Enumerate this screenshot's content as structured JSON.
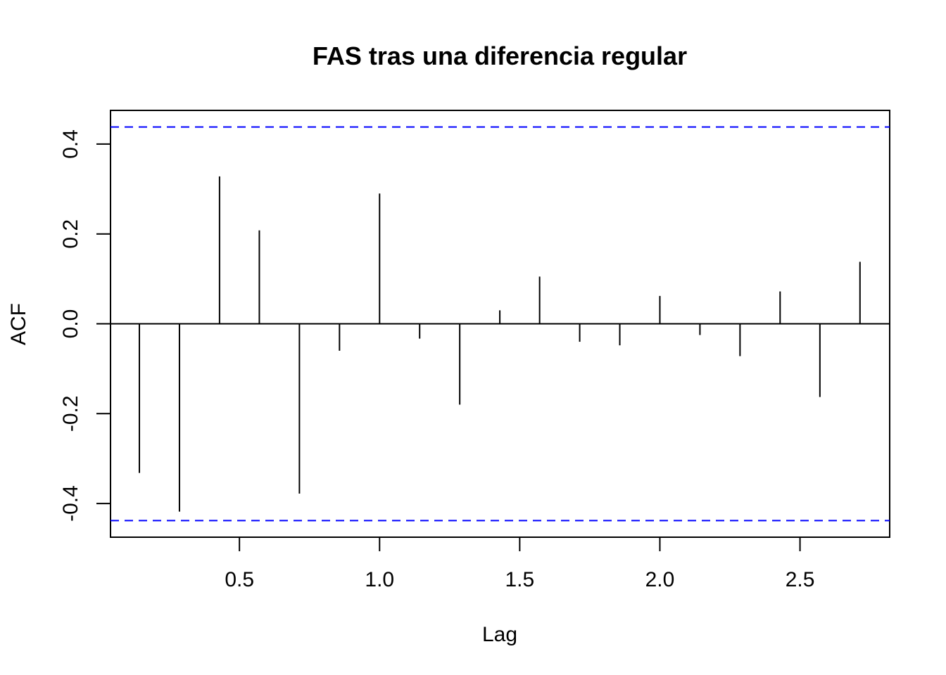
{
  "chart_data": {
    "type": "bar",
    "subtype": "acf-stem",
    "title": "FAS tras una diferencia regular",
    "xlabel": "Lag",
    "ylabel": "ACF",
    "xlim": [
      0.04,
      2.82
    ],
    "ylim": [
      -0.475,
      0.475
    ],
    "xticks": [
      0.5,
      1.0,
      1.5,
      2.0,
      2.5
    ],
    "xtick_labels": [
      "0.5",
      "1.0",
      "1.5",
      "2.0",
      "2.5"
    ],
    "yticks": [
      -0.4,
      -0.2,
      0.0,
      0.2,
      0.4
    ],
    "ytick_labels": [
      "-0.4",
      "-0.2",
      "0.0",
      "0.2",
      "0.4"
    ],
    "x": [
      0.143,
      0.286,
      0.429,
      0.571,
      0.714,
      0.857,
      1.0,
      1.143,
      1.286,
      1.429,
      1.571,
      1.714,
      1.857,
      2.0,
      2.143,
      2.286,
      2.429,
      2.571,
      2.714
    ],
    "values": [
      -0.332,
      -0.418,
      0.328,
      0.208,
      -0.378,
      -0.06,
      0.29,
      -0.033,
      -0.18,
      0.03,
      0.105,
      -0.04,
      -0.048,
      0.062,
      -0.025,
      -0.072,
      0.072,
      -0.163,
      0.138
    ],
    "confidence_limit": 0.438,
    "confidence_color": "#0000ff",
    "bar_color": "#000000",
    "grid": false,
    "legend": "none"
  }
}
